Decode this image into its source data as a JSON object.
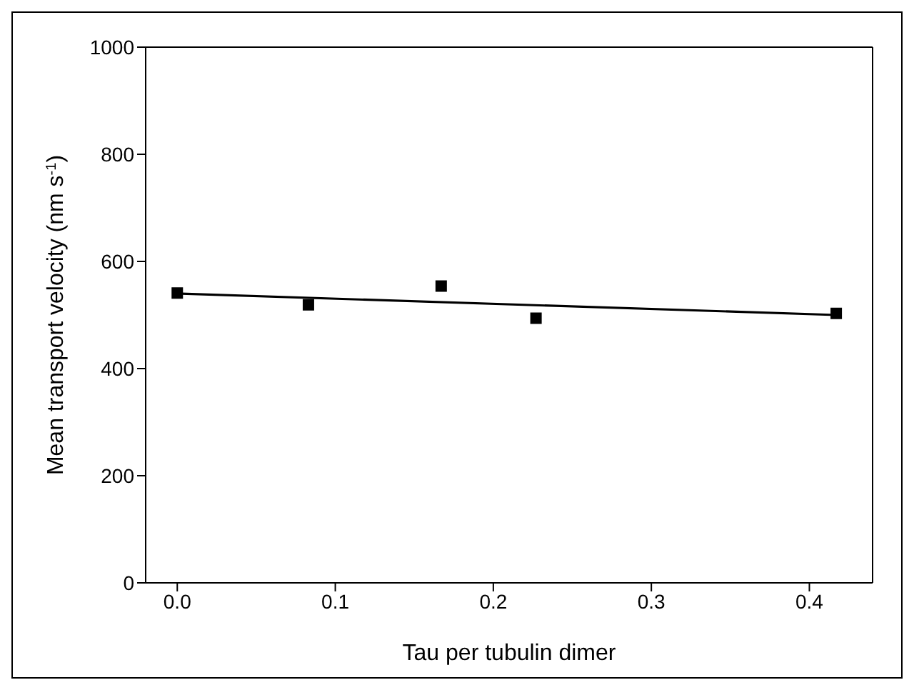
{
  "chart_data": {
    "type": "scatter",
    "xlabel": "Tau per tubulin dimer",
    "ylabel": "Mean transport velocity (nm s$^{-1}$)",
    "xlim": [
      -0.02,
      0.44
    ],
    "xticks": [
      {
        "value": 0,
        "label": "0.0"
      },
      0.1,
      0.2,
      0.3,
      0.4
    ],
    "ylim": [
      0,
      1000
    ],
    "yticks": [
      0,
      200,
      400,
      600,
      800,
      1000
    ],
    "marker": "square",
    "grid": false,
    "series": [
      {
        "color": "#000000",
        "x": [
          0,
          0.083,
          0.167,
          0.227,
          0.417
        ],
        "values": [
          541,
          519,
          554,
          494,
          503
        ]
      },
      {
        "type": "line",
        "marker": "none",
        "color": "#000000",
        "x": [
          0,
          0.417
        ],
        "values": [
          540,
          500
        ]
      }
    ]
  }
}
